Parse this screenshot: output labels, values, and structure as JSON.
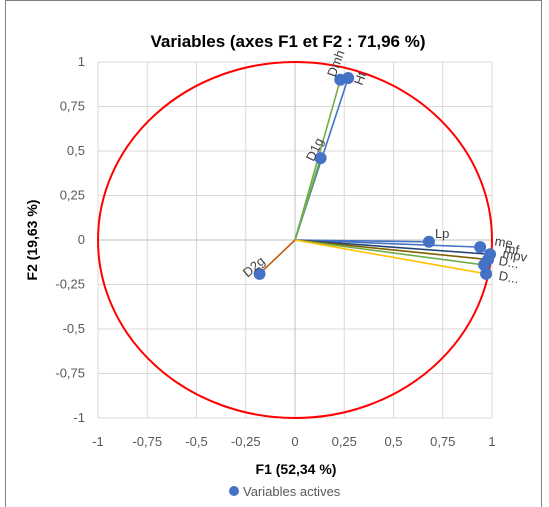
{
  "chart_data": {
    "type": "scatter",
    "title": "Variables (axes F1 et F2 : 71,96 %)",
    "xlabel": "F1 (52,34 %)",
    "ylabel": "F2 (19,63 %)",
    "xlim": [
      -1,
      1
    ],
    "ylim": [
      -1,
      1
    ],
    "x_ticks": [
      "-1",
      "-0,75",
      "-0,5",
      "-0,25",
      "0",
      "0,25",
      "0,5",
      "0,75",
      "1"
    ],
    "y_ticks": [
      "1",
      "0,75",
      "0,5",
      "0,25",
      "0",
      "-0,25",
      "-0,5",
      "-0,75",
      "-1"
    ],
    "grid": true,
    "legend": {
      "position": "bottom",
      "entries": [
        "Variables actives"
      ]
    },
    "marker_color": "#4472C4",
    "circle_color": "#FF0000",
    "series": [
      {
        "name": "Variables actives",
        "points": [
          {
            "label": "Dmh",
            "x": 0.23,
            "y": 0.9,
            "vector_color": "#70AD47",
            "label_rotation": -70
          },
          {
            "label": "Ht",
            "x": 0.27,
            "y": 0.91,
            "vector_color": "#4472C4",
            "label_rotation": -70
          },
          {
            "label": "D1g",
            "x": 0.13,
            "y": 0.46,
            "vector_color": "#70AD47",
            "label_rotation": -65
          },
          {
            "label": "D2g",
            "x": -0.18,
            "y": -0.19,
            "vector_color": "#C55A11",
            "label_rotation": -40
          },
          {
            "label": "Lp",
            "x": 0.68,
            "y": -0.01,
            "vector_color": "#4472C4",
            "label_rotation": 0
          },
          {
            "label": "me",
            "x": 0.94,
            "y": -0.04,
            "vector_color": "#4472C4",
            "label_rotation": 10
          },
          {
            "label": "mf",
            "x": 0.99,
            "y": -0.08,
            "vector_color": "#264478",
            "label_rotation": 10
          },
          {
            "label": "mpv",
            "x": 0.98,
            "y": -0.11,
            "vector_color": "#7F6000",
            "label_rotation": 10
          },
          {
            "label": "D...",
            "x": 0.96,
            "y": -0.14,
            "vector_color": "#70AD47",
            "label_rotation": 10
          },
          {
            "label": "D...",
            "x": 0.97,
            "y": -0.19,
            "vector_color": "#FFC000",
            "label_rotation": 10
          }
        ]
      }
    ]
  }
}
